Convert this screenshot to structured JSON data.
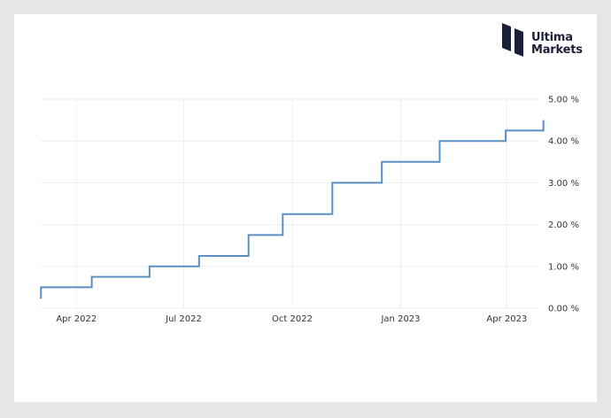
{
  "brand": {
    "line1": "Ultima",
    "line2": "Markets",
    "logo_icon": "ultima-markets-logo-icon",
    "color": "#1b1f3b"
  },
  "chart_data": {
    "type": "line",
    "step": true,
    "title": "",
    "xlabel": "",
    "ylabel": "",
    "line_color": "#5b8fc4",
    "grid": true,
    "ylim": [
      0,
      5
    ],
    "y_ticks": [
      "0.00 %",
      "1.00 %",
      "2.00 %",
      "3.00 %",
      "4.00 %",
      "5.00 %"
    ],
    "x_ticks": [
      {
        "label": "Apr 2022",
        "date": "2022-04-01"
      },
      {
        "label": "Jul 2022",
        "date": "2022-07-01"
      },
      {
        "label": "Oct 2022",
        "date": "2022-10-01"
      },
      {
        "label": "Jan 2023",
        "date": "2023-01-01"
      },
      {
        "label": "Apr 2023",
        "date": "2023-04-01"
      }
    ],
    "xlim": [
      "2022-03-01",
      "2023-05-03"
    ],
    "series": [
      {
        "points": [
          {
            "date": "2022-03-01",
            "value": 0.25
          },
          {
            "date": "2022-03-02",
            "value": 0.5
          },
          {
            "date": "2022-04-14",
            "value": 0.75
          },
          {
            "date": "2022-06-02",
            "value": 1.0
          },
          {
            "date": "2022-07-14",
            "value": 1.25
          },
          {
            "date": "2022-08-25",
            "value": 1.75
          },
          {
            "date": "2022-09-23",
            "value": 2.25
          },
          {
            "date": "2022-11-04",
            "value": 3.0
          },
          {
            "date": "2022-12-16",
            "value": 3.5
          },
          {
            "date": "2023-02-03",
            "value": 4.0
          },
          {
            "date": "2023-03-31",
            "value": 4.25
          },
          {
            "date": "2023-05-02",
            "value": 4.5
          }
        ]
      }
    ]
  }
}
